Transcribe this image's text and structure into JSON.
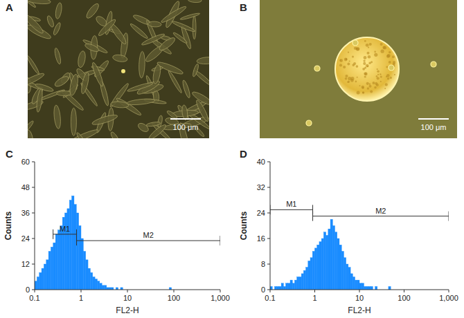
{
  "chart_data": [
    {
      "type": "histogram",
      "title": "C",
      "xlabel": "FL2-H",
      "ylabel": "Counts",
      "log": "x",
      "grid": false,
      "color": "#1a8cff",
      "xlim": [
        0.1,
        1000
      ],
      "xticks": [
        0.1,
        1,
        10,
        100,
        {
          "value": 1000,
          "label": "1,000"
        }
      ],
      "ylim": [
        0,
        60
      ],
      "yticks": [
        0,
        12,
        24,
        36,
        48,
        60
      ],
      "bins": [
        0.1,
        0.1122,
        0.1259,
        0.1413,
        0.1585,
        0.1778,
        0.1995,
        0.2239,
        0.2512,
        0.2818,
        0.3162,
        0.3548,
        0.3981,
        0.4467,
        0.5012,
        0.5623,
        0.631,
        0.7079,
        0.7943,
        0.8913,
        1,
        1.122,
        1.259,
        1.413,
        1.585,
        1.778,
        1.995,
        2.239,
        2.512,
        2.818,
        3.162,
        3.548,
        3.981,
        4.467,
        5.012,
        5.623,
        6.31,
        7.079,
        7.943,
        8.913,
        10,
        11.22,
        12.59,
        14.13,
        15.85,
        17.78,
        19.95,
        22.39,
        25.12,
        28.18,
        31.62,
        35.48,
        39.81,
        44.67,
        50.12,
        56.23,
        63.1,
        70.79,
        79.43,
        89.13,
        100
      ],
      "values": [
        4,
        6,
        8,
        10,
        12,
        14,
        18,
        20,
        22,
        26,
        28,
        30,
        34,
        36,
        38,
        42,
        44,
        40,
        36,
        30,
        24,
        18,
        14,
        10,
        8,
        6,
        5,
        4,
        3,
        2,
        2,
        1,
        1,
        1,
        0,
        1,
        0,
        1,
        0,
        0,
        0,
        0,
        0,
        0,
        0,
        0,
        0,
        0,
        0,
        0,
        0,
        0,
        0,
        0,
        0,
        0,
        0,
        0,
        1,
        0
      ],
      "gates": [
        {
          "label": "M1",
          "range": [
            0.25,
            0.8
          ],
          "y": 26
        },
        {
          "label": "M2",
          "range": [
            0.8,
            1000
          ],
          "y": 23
        }
      ]
    },
    {
      "type": "histogram",
      "title": "D",
      "xlabel": "FL2-H",
      "ylabel": "Counts",
      "log": "x",
      "grid": false,
      "color": "#1a8cff",
      "xlim": [
        0.1,
        1000
      ],
      "xticks": [
        0.1,
        1,
        10,
        100,
        {
          "value": 1000,
          "label": "1,000"
        }
      ],
      "ylim": [
        0,
        40
      ],
      "yticks": [
        0,
        8,
        16,
        24,
        32,
        40
      ],
      "bins": [
        0.1,
        0.1122,
        0.1259,
        0.1413,
        0.1585,
        0.1778,
        0.1995,
        0.2239,
        0.2512,
        0.2818,
        0.3162,
        0.3548,
        0.3981,
        0.4467,
        0.5012,
        0.5623,
        0.631,
        0.7079,
        0.7943,
        0.8913,
        1,
        1.122,
        1.259,
        1.413,
        1.585,
        1.778,
        1.995,
        2.239,
        2.512,
        2.818,
        3.162,
        3.548,
        3.981,
        4.467,
        5.012,
        5.623,
        6.31,
        7.079,
        7.943,
        8.913,
        10,
        11.22,
        12.59,
        14.13,
        15.85,
        17.78,
        19.95,
        22.39,
        25.12,
        28.18,
        31.62,
        35.48,
        39.81,
        44.67,
        50.12,
        56.23,
        63.1,
        70.79,
        79.43,
        89.13,
        100
      ],
      "values": [
        1,
        0,
        1,
        1,
        1,
        2,
        1,
        2,
        2,
        3,
        2,
        3,
        4,
        4,
        5,
        6,
        7,
        9,
        10,
        12,
        13,
        14,
        15,
        16,
        18,
        17,
        19,
        22,
        20,
        18,
        16,
        14,
        12,
        10,
        8,
        7,
        5,
        4,
        3,
        3,
        2,
        2,
        1,
        1,
        1,
        1,
        0,
        1,
        0,
        0,
        0,
        0,
        0,
        1,
        0,
        0,
        0,
        0,
        0,
        0
      ],
      "gates": [
        {
          "label": "M1",
          "range": [
            0.1,
            0.9
          ],
          "y": 25
        },
        {
          "label": "M2",
          "range": [
            0.9,
            1000
          ],
          "y": 23
        }
      ]
    }
  ],
  "images": [
    {
      "label": "A",
      "scale_bar": "100 μm"
    },
    {
      "label": "B",
      "scale_bar": "100 μm"
    }
  ]
}
